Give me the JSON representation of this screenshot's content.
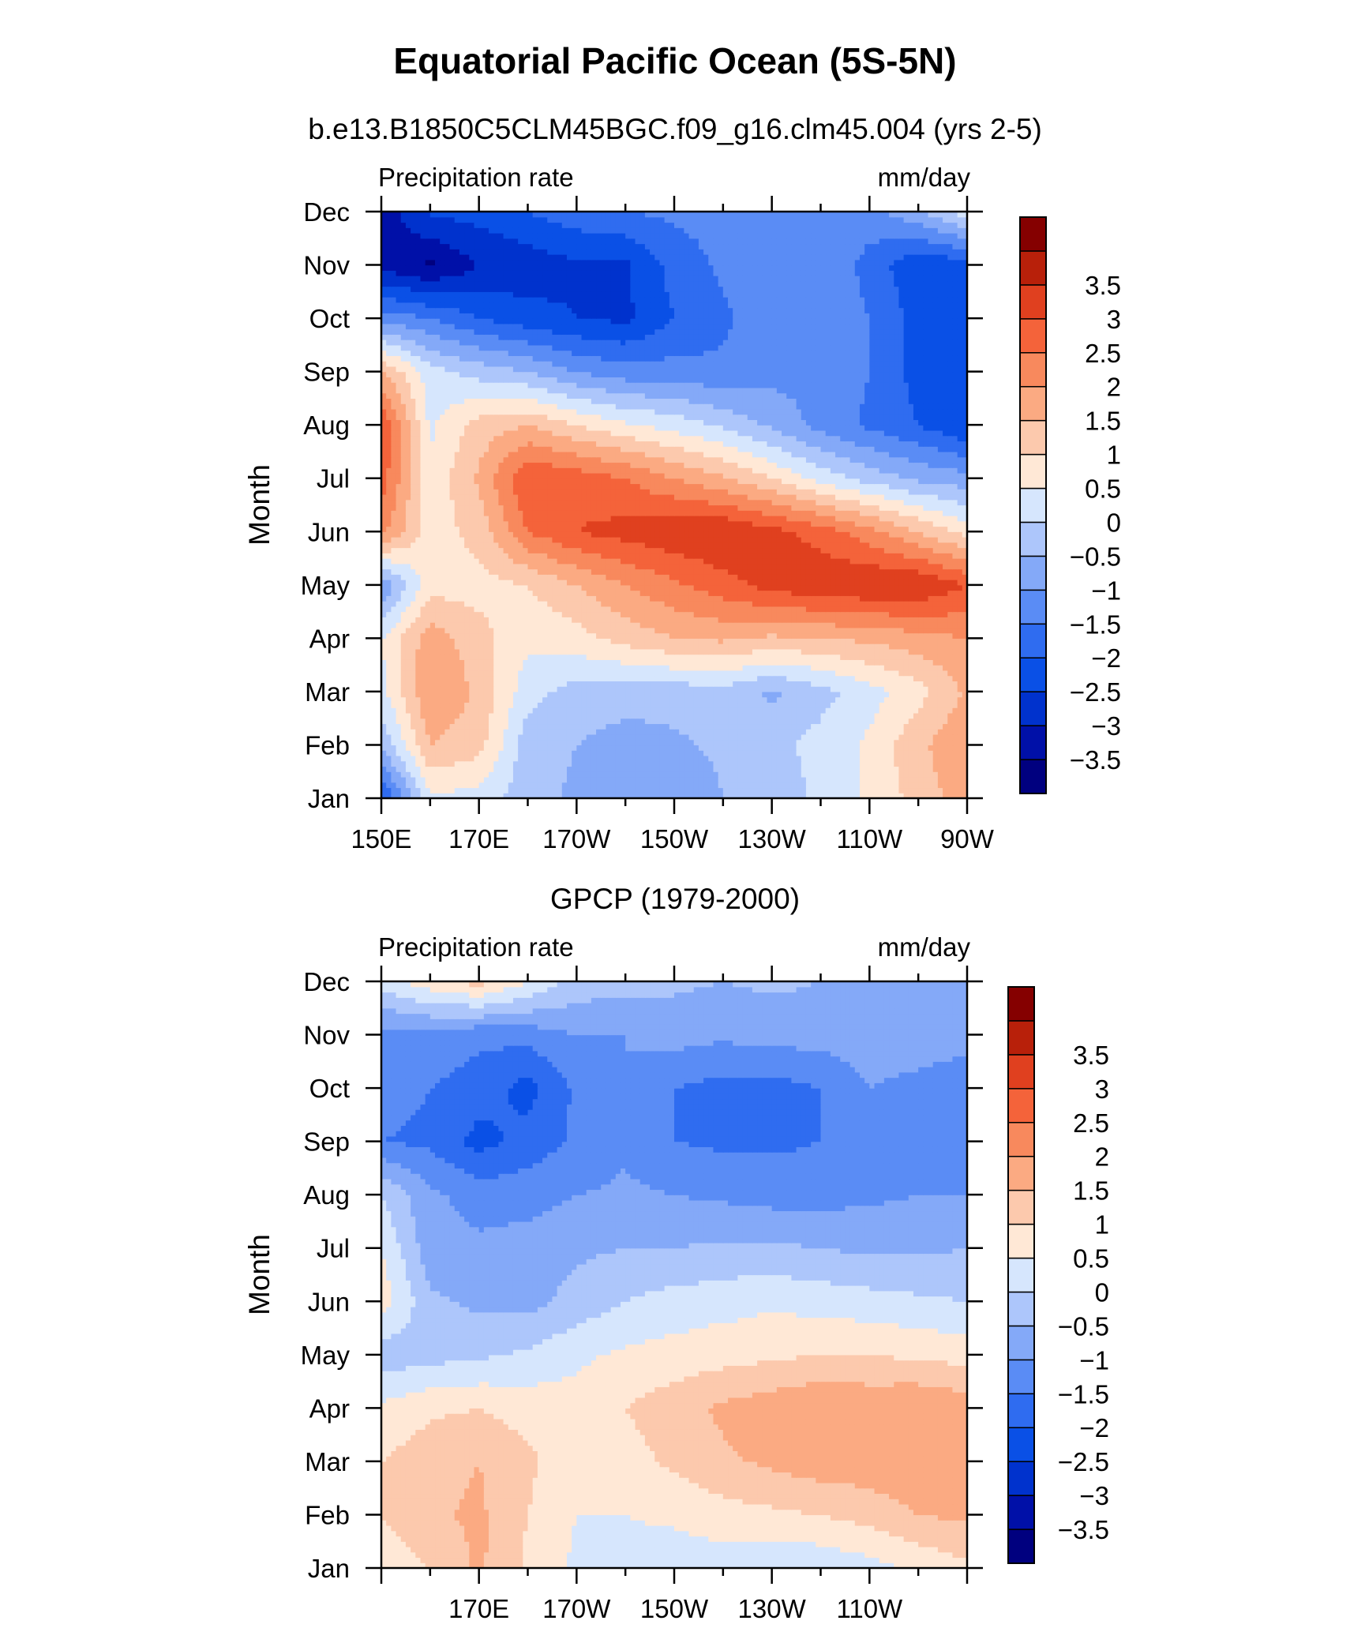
{
  "figure": {
    "title": "Equatorial Pacific Ocean (5S-5N)"
  },
  "colorbar": {
    "colors": [
      "#00007f",
      "#0010a8",
      "#0032cd",
      "#0a50e6",
      "#2f6cf0",
      "#5a8cf5",
      "#84a9f8",
      "#adc6fb",
      "#d6e6fd",
      "#ffe8d6",
      "#fcc9ad",
      "#fbaa82",
      "#f8895d",
      "#f4633a",
      "#e0401f",
      "#b8200a",
      "#850000"
    ],
    "labels": [
      "-3.5",
      "-3",
      "-2.5",
      "-2",
      "-1.5",
      "-1",
      "-0.5",
      "0",
      "0.5",
      "1",
      "1.5",
      "2",
      "2.5",
      "3",
      "3.5"
    ]
  },
  "chart_data": [
    {
      "type": "heatmap",
      "title": "b.e13.B1850C5CLM45BGC.f09_g16.clm45.004 (yrs 2-5)",
      "left_string": "Precipitation rate",
      "right_string": "mm/day",
      "ylabel": "Month",
      "x": [
        150,
        160,
        170,
        180,
        190,
        200,
        210,
        220,
        230,
        240,
        250,
        260,
        270
      ],
      "xlim": [
        150,
        270
      ],
      "x_tick_values": [
        150,
        170,
        190,
        210,
        230,
        250,
        270
      ],
      "x_tick_labels": [
        "150E",
        "170E",
        "170W",
        "150W",
        "130W",
        "110W",
        "90W"
      ],
      "y": [
        "Jan",
        "Feb",
        "Mar",
        "Apr",
        "May",
        "Jun",
        "Jul",
        "Aug",
        "Sep",
        "Oct",
        "Nov",
        "Dec"
      ],
      "levels": [
        -3.5,
        -3,
        -2.5,
        -2,
        -1.5,
        -1,
        -0.5,
        0,
        0.5,
        1,
        1.5,
        2,
        2.5,
        3,
        3.5
      ],
      "values": [
        [
          -2.2,
          0.4,
          0.3,
          -0.3,
          -0.6,
          -1.0,
          -0.9,
          -0.5,
          -0.3,
          0.1,
          0.6,
          1.2,
          1.8
        ],
        [
          -0.4,
          1.5,
          1.2,
          -0.3,
          -0.5,
          -0.7,
          -0.6,
          -0.4,
          -0.2,
          0.2,
          0.6,
          1.4,
          1.9
        ],
        [
          0.3,
          2.0,
          1.4,
          0.2,
          -0.2,
          -0.3,
          -0.3,
          -0.2,
          -0.6,
          -0.2,
          0.3,
          0.8,
          1.6
        ],
        [
          0.5,
          1.8,
          1.2,
          0.6,
          0.8,
          1.2,
          1.5,
          1.6,
          1.4,
          1.5,
          1.6,
          1.8,
          2.0
        ],
        [
          -1.0,
          0.8,
          0.8,
          1.0,
          1.5,
          2.0,
          2.4,
          2.8,
          3.2,
          3.4,
          3.5,
          3.5,
          3.0
        ],
        [
          2.2,
          0.7,
          1.2,
          2.5,
          3.0,
          3.2,
          3.4,
          3.5,
          3.2,
          2.8,
          2.2,
          1.5,
          0.8
        ],
        [
          2.8,
          0.6,
          1.6,
          3.0,
          2.8,
          2.5,
          2.0,
          1.6,
          1.0,
          0.3,
          -0.2,
          -0.6,
          -0.8
        ],
        [
          3.0,
          0.4,
          1.2,
          1.5,
          1.0,
          0.6,
          0.3,
          -0.1,
          -0.6,
          -1.2,
          -1.6,
          -2.0,
          -2.5
        ],
        [
          1.6,
          0.2,
          -0.2,
          -0.5,
          -1.0,
          -1.3,
          -1.3,
          -1.4,
          -1.2,
          -1.1,
          -1.5,
          -2.2,
          -2.5
        ],
        [
          -1.2,
          -1.5,
          -2.0,
          -2.3,
          -2.5,
          -2.6,
          -2.0,
          -1.6,
          -1.2,
          -1.0,
          -1.5,
          -2.2,
          -2.5
        ],
        [
          -3.2,
          -3.6,
          -3.0,
          -2.8,
          -2.6,
          -2.6,
          -1.8,
          -1.4,
          -1.2,
          -1.0,
          -1.7,
          -2.4,
          -2.3
        ],
        [
          -3.3,
          -2.4,
          -2.3,
          -2.0,
          -1.7,
          -1.5,
          -1.4,
          -1.3,
          -1.3,
          -1.3,
          -1.2,
          -0.6,
          0.3
        ]
      ]
    },
    {
      "type": "heatmap",
      "title": "GPCP (1979-2000)",
      "left_string": "Precipitation rate",
      "right_string": "mm/day",
      "ylabel": "Month",
      "x": [
        150,
        160,
        170,
        180,
        190,
        200,
        210,
        220,
        230,
        240,
        250,
        260,
        270
      ],
      "xlim": [
        150,
        270
      ],
      "x_tick_values": [
        170,
        190,
        210,
        230,
        250
      ],
      "x_tick_labels": [
        "170E",
        "170W",
        "150W",
        "130W",
        "110W"
      ],
      "y": [
        "Jan",
        "Feb",
        "Mar",
        "Apr",
        "May",
        "Jun",
        "Jul",
        "Aug",
        "Sep",
        "Oct",
        "Nov",
        "Dec"
      ],
      "levels": [
        -3.5,
        -3,
        -2.5,
        -2,
        -1.5,
        -1,
        -0.5,
        0,
        0.5,
        1,
        1.5,
        2,
        2.5,
        3,
        3.5
      ],
      "values": [
        [
          0.7,
          1.0,
          1.6,
          0.9,
          0.4,
          0.3,
          0.2,
          0.2,
          0.1,
          0.1,
          0.3,
          0.6,
          0.9
        ],
        [
          1.0,
          1.4,
          1.6,
          1.0,
          0.5,
          0.5,
          0.6,
          0.8,
          0.9,
          1.0,
          1.2,
          1.5,
          1.6
        ],
        [
          1.0,
          1.3,
          1.5,
          1.1,
          0.7,
          0.8,
          1.1,
          1.4,
          1.6,
          1.8,
          1.8,
          1.9,
          2.0
        ],
        [
          0.6,
          0.9,
          1.0,
          0.8,
          0.7,
          1.0,
          1.3,
          1.6,
          1.8,
          2.0,
          1.9,
          2.0,
          1.8
        ],
        [
          -0.3,
          -0.2,
          -0.1,
          0.1,
          0.4,
          0.6,
          0.7,
          0.8,
          0.9,
          1.0,
          1.0,
          0.9,
          0.8
        ],
        [
          0.8,
          -0.4,
          -0.6,
          -0.7,
          -0.3,
          0.0,
          0.2,
          0.3,
          0.4,
          0.3,
          0.2,
          0.1,
          0.0
        ],
        [
          0.5,
          -0.8,
          -0.9,
          -0.8,
          -0.6,
          -0.5,
          -0.5,
          -0.4,
          -0.4,
          -0.5,
          -0.6,
          -0.6,
          -0.5
        ],
        [
          0.0,
          -0.9,
          -1.2,
          -1.2,
          -1.0,
          -0.9,
          -1.0,
          -1.1,
          -1.2,
          -1.2,
          -1.1,
          -1.0,
          -1.0
        ],
        [
          -1.5,
          -1.6,
          -2.2,
          -1.8,
          -1.4,
          -1.1,
          -1.5,
          -1.6,
          -1.6,
          -1.5,
          -1.0,
          -1.2,
          -1.4
        ],
        [
          -1.3,
          -1.5,
          -1.7,
          -2.2,
          -1.4,
          -1.0,
          -1.5,
          -1.7,
          -1.7,
          -1.5,
          -1.0,
          -1.2,
          -1.5
        ],
        [
          -1.2,
          -1.2,
          -1.4,
          -1.3,
          -1.0,
          -1.0,
          -0.8,
          -0.9,
          -0.8,
          -0.8,
          -0.7,
          -0.6,
          -0.7
        ],
        [
          0.2,
          0.8,
          1.2,
          0.5,
          -0.2,
          -0.3,
          -0.4,
          -0.5,
          -0.4,
          -0.5,
          -0.5,
          -0.5,
          -0.5
        ]
      ]
    }
  ]
}
